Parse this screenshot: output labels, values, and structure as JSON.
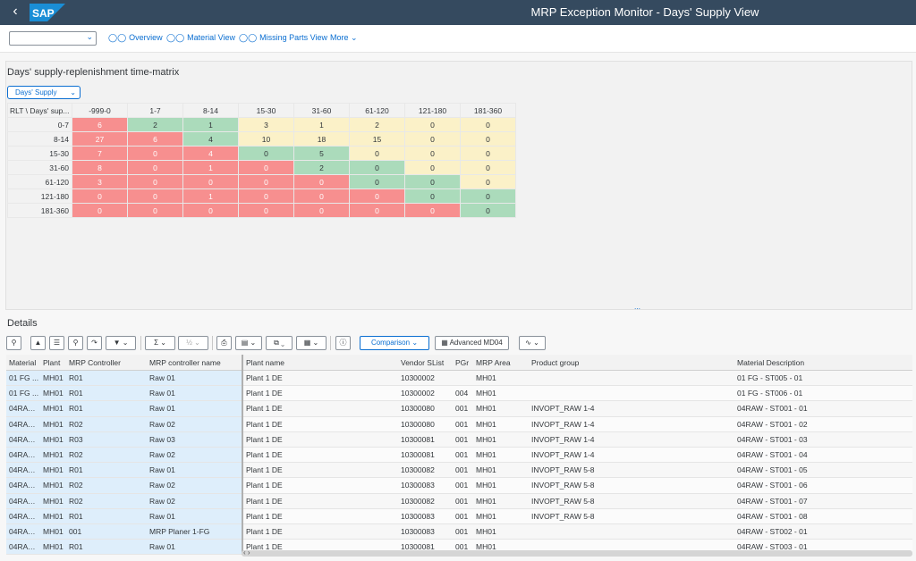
{
  "shell": {
    "title": "MRP Exception Monitor - Days' Supply View",
    "logo": "SAP"
  },
  "toolbar": {
    "variant_value": "",
    "links": [
      {
        "icon": "glasses-icon",
        "label": "Overview"
      },
      {
        "icon": "glasses-icon",
        "label": "Material View"
      },
      {
        "icon": "glasses-icon",
        "label": "Missing Parts View"
      }
    ],
    "more_label": "More"
  },
  "matrix": {
    "title": "Days' supply-replenishment time-matrix",
    "selector_value": "Days' Supply",
    "corner_label": "RLT \\ Days' sup...",
    "columns": [
      "-999-0",
      "1-7",
      "8-14",
      "15-30",
      "31-60",
      "61-120",
      "121-180",
      "181-360"
    ],
    "rows": [
      {
        "label": "0-7",
        "values": [
          "6",
          "2",
          "1",
          "3",
          "1",
          "2",
          "0",
          "0"
        ],
        "colors": [
          "red",
          "green",
          "green",
          "yellow",
          "yellow",
          "yellow",
          "yellow",
          "yellow"
        ]
      },
      {
        "label": "8-14",
        "values": [
          "27",
          "6",
          "4",
          "10",
          "18",
          "15",
          "0",
          "0"
        ],
        "colors": [
          "red",
          "red",
          "green",
          "yellow",
          "yellow",
          "yellow",
          "yellow",
          "yellow"
        ]
      },
      {
        "label": "15-30",
        "values": [
          "7",
          "0",
          "4",
          "0",
          "5",
          "0",
          "0",
          "0"
        ],
        "colors": [
          "red",
          "red",
          "red",
          "green",
          "green",
          "yellow",
          "yellow",
          "yellow"
        ]
      },
      {
        "label": "31-60",
        "values": [
          "8",
          "0",
          "1",
          "0",
          "2",
          "0",
          "0",
          "0"
        ],
        "colors": [
          "red",
          "red",
          "red",
          "red",
          "green",
          "green",
          "yellow",
          "yellow"
        ]
      },
      {
        "label": "61-120",
        "values": [
          "3",
          "0",
          "0",
          "0",
          "0",
          "0",
          "0",
          "0"
        ],
        "colors": [
          "red",
          "red",
          "red",
          "red",
          "red",
          "green",
          "green",
          "yellow"
        ]
      },
      {
        "label": "121-180",
        "values": [
          "0",
          "0",
          "1",
          "0",
          "0",
          "0",
          "0",
          "0"
        ],
        "colors": [
          "red",
          "red",
          "red",
          "red",
          "red",
          "red",
          "green",
          "green"
        ]
      },
      {
        "label": "181-360",
        "values": [
          "0",
          "0",
          "0",
          "0",
          "0",
          "0",
          "0",
          "0"
        ],
        "colors": [
          "red",
          "red",
          "red",
          "red",
          "red",
          "red",
          "red",
          "green"
        ]
      }
    ],
    "colors": {
      "red": "#f78f8f",
      "green": "#abdbbb",
      "yellow": "#fbf1c8"
    }
  },
  "details": {
    "title": "Details",
    "comparison_label": "Comparison",
    "advanced_label": "Advanced MD04",
    "columns": [
      "Material",
      "Plant",
      "MRP Controller",
      "MRP controller name",
      "Plant name",
      "Vendor SList",
      "PGr",
      "MRP Area",
      "Product group",
      "Material Description"
    ],
    "rows": [
      [
        "01 FG ...",
        "MH01",
        "R01",
        "Raw 01",
        "Plant 1 DE",
        "10300002",
        "",
        "MH01",
        "",
        "01 FG - ST005 - 01"
      ],
      [
        "01 FG ...",
        "MH01",
        "R01",
        "Raw 01",
        "Plant 1 DE",
        "10300002",
        "004",
        "MH01",
        "",
        "01 FG - ST006 - 01"
      ],
      [
        "04RAW...",
        "MH01",
        "R01",
        "Raw 01",
        "Plant 1 DE",
        "10300080",
        "001",
        "MH01",
        "INVOPT_RAW 1-4",
        "04RAW - ST001 - 01"
      ],
      [
        "04RAW...",
        "MH01",
        "R02",
        "Raw 02",
        "Plant 1 DE",
        "10300080",
        "001",
        "MH01",
        "INVOPT_RAW 1-4",
        "04RAW - ST001 - 02"
      ],
      [
        "04RAW...",
        "MH01",
        "R03",
        "Raw 03",
        "Plant 1 DE",
        "10300081",
        "001",
        "MH01",
        "INVOPT_RAW 1-4",
        "04RAW - ST001 - 03"
      ],
      [
        "04RAW...",
        "MH01",
        "R02",
        "Raw 02",
        "Plant 1 DE",
        "10300081",
        "001",
        "MH01",
        "INVOPT_RAW 1-4",
        "04RAW - ST001 - 04"
      ],
      [
        "04RAW...",
        "MH01",
        "R01",
        "Raw 01",
        "Plant 1 DE",
        "10300082",
        "001",
        "MH01",
        "INVOPT_RAW 5-8",
        "04RAW - ST001 - 05"
      ],
      [
        "04RAW...",
        "MH01",
        "R02",
        "Raw 02",
        "Plant 1 DE",
        "10300083",
        "001",
        "MH01",
        "INVOPT_RAW 5-8",
        "04RAW - ST001 - 06"
      ],
      [
        "04RAW...",
        "MH01",
        "R02",
        "Raw 02",
        "Plant 1 DE",
        "10300082",
        "001",
        "MH01",
        "INVOPT_RAW 5-8",
        "04RAW - ST001 - 07"
      ],
      [
        "04RAW...",
        "MH01",
        "R01",
        "Raw 01",
        "Plant 1 DE",
        "10300083",
        "001",
        "MH01",
        "INVOPT_RAW 5-8",
        "04RAW - ST001 - 08"
      ],
      [
        "04RAW...",
        "MH01",
        "001",
        "MRP Planer 1-FG",
        "Plant 1 DE",
        "10300083",
        "001",
        "MH01",
        "",
        "04RAW - ST002 - 01"
      ],
      [
        "04RAW...",
        "MH01",
        "R01",
        "Raw 01",
        "Plant 1 DE",
        "10300081",
        "001",
        "MH01",
        "",
        "04RAW - ST003 - 01"
      ]
    ]
  }
}
